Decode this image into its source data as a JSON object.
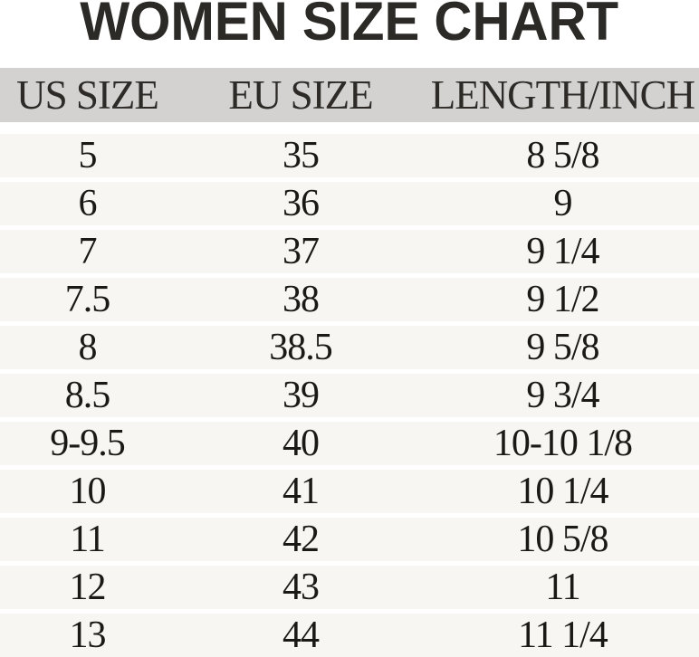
{
  "page_title": "WOMEN SIZE CHART",
  "colors": {
    "title_text": "#2b2a26",
    "header_background": "#d3d2d0",
    "header_text": "#2d2a27",
    "row_background": "#f7f6f2",
    "row_text": "#1b1916",
    "page_background": "#ffffff"
  },
  "chart_data": {
    "type": "table",
    "title": "WOMEN SIZE CHART",
    "columns": [
      "US SIZE",
      "EU SIZE",
      "LENGTH/INCH"
    ],
    "rows": [
      [
        "5",
        "35",
        "8 5/8"
      ],
      [
        "6",
        "36",
        "9"
      ],
      [
        "7",
        "37",
        "9 1/4"
      ],
      [
        "7.5",
        "38",
        "9 1/2"
      ],
      [
        "8",
        "38.5",
        "9 5/8"
      ],
      [
        "8.5",
        "39",
        "9 3/4"
      ],
      [
        "9-9.5",
        "40",
        "10-10 1/8"
      ],
      [
        "10",
        "41",
        "10 1/4"
      ],
      [
        "11",
        "42",
        "10 5/8"
      ],
      [
        "12",
        "43",
        "11"
      ],
      [
        "13",
        "44",
        "11 1/4"
      ]
    ]
  }
}
